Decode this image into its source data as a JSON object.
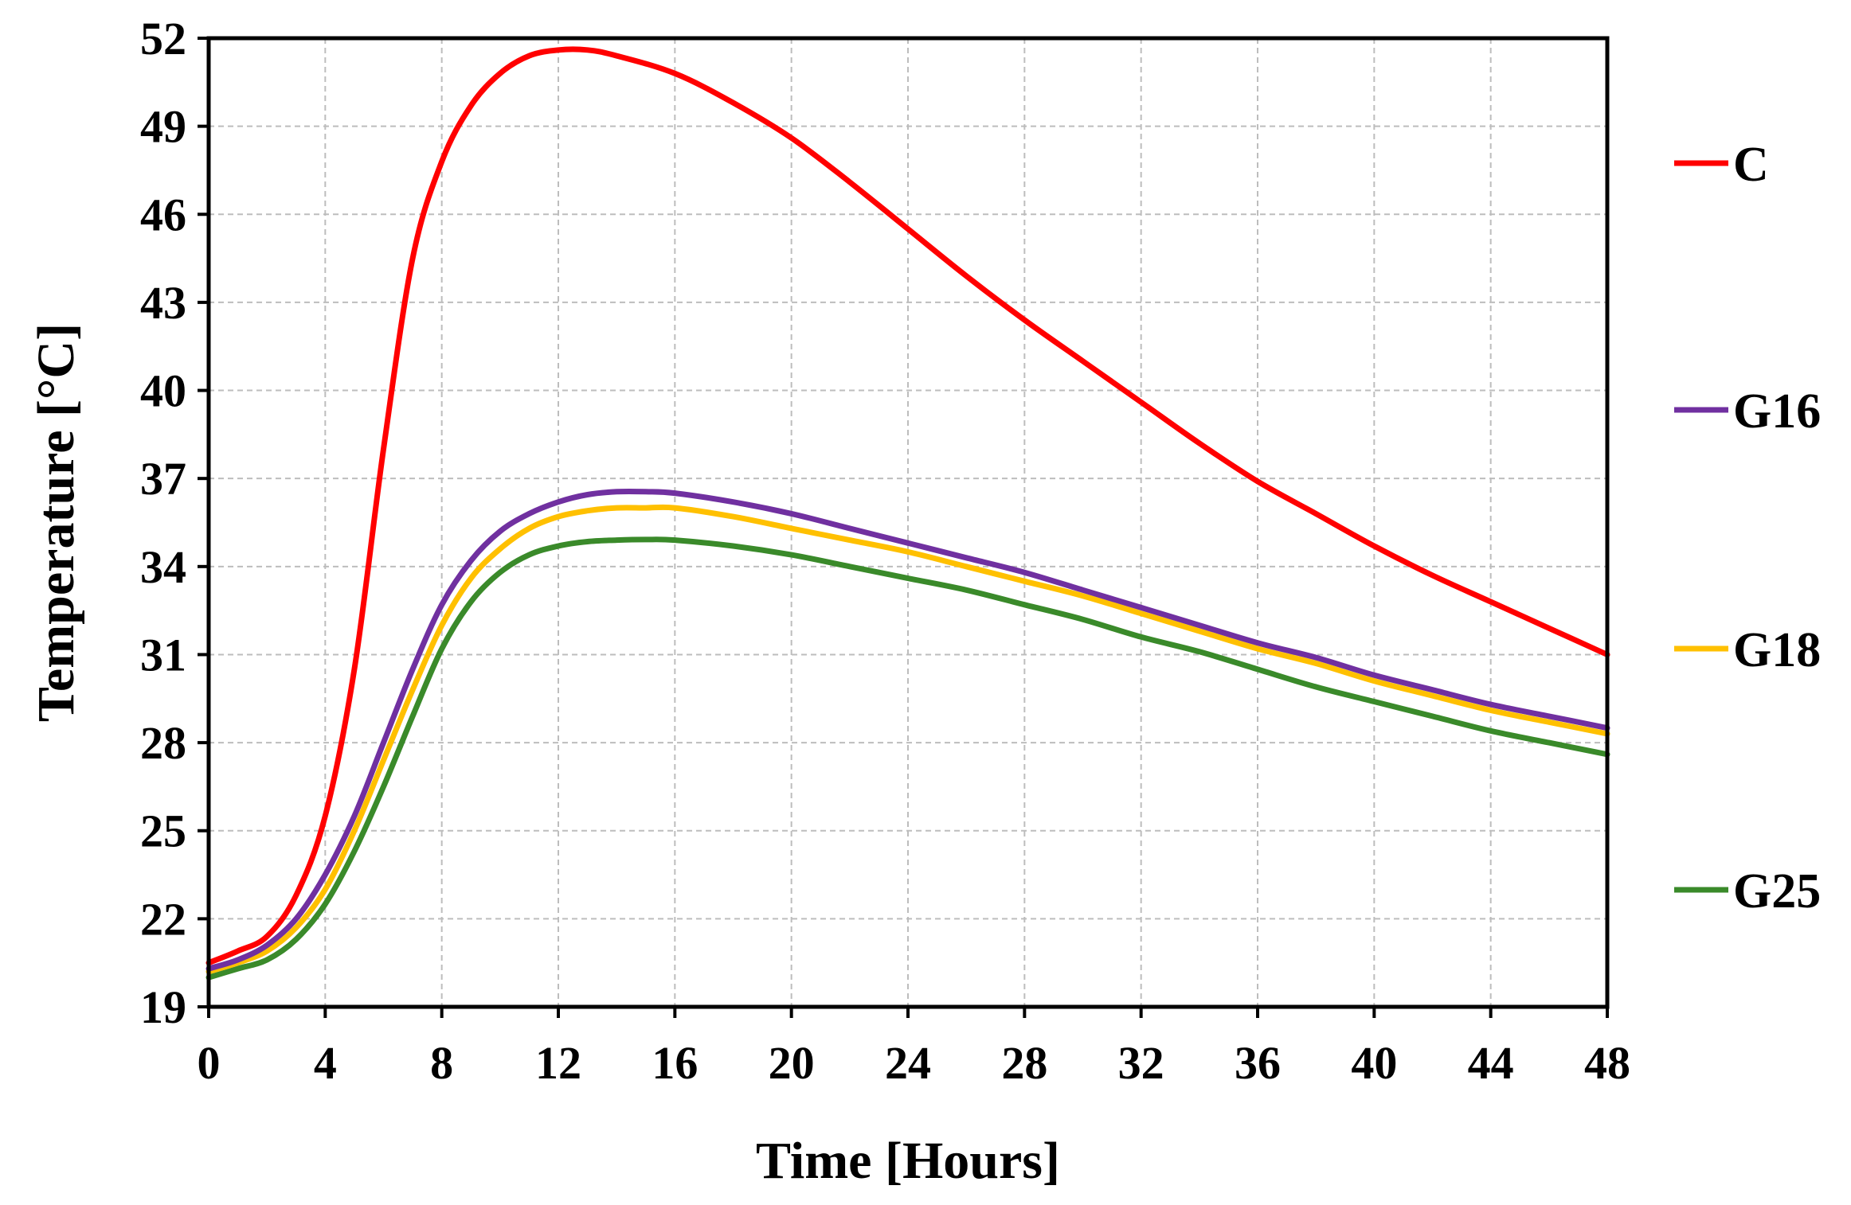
{
  "chart_data": {
    "type": "line",
    "title": "",
    "xlabel": "Time [Hours]",
    "ylabel": "Temperature [°C]",
    "xlim": [
      0,
      48
    ],
    "ylim": [
      19,
      52
    ],
    "xticks": [
      0,
      4,
      8,
      12,
      16,
      20,
      24,
      28,
      32,
      36,
      40,
      44,
      48
    ],
    "yticks": [
      19,
      22,
      25,
      28,
      31,
      34,
      37,
      40,
      43,
      46,
      49,
      52
    ],
    "x_tick_labels": [
      "0",
      "4",
      "8",
      "12",
      "16",
      "20",
      "24",
      "28",
      "32",
      "36",
      "40",
      "44",
      "48"
    ],
    "y_tick_labels": [
      "19",
      "22",
      "25",
      "28",
      "31",
      "34",
      "37",
      "40",
      "43",
      "46",
      "49",
      "52"
    ],
    "grid": true,
    "legend_position": "right",
    "series": [
      {
        "name": "C",
        "color": "#ff0000",
        "x": [
          0,
          1,
          2,
          3,
          4,
          5,
          6,
          7,
          8,
          9,
          10,
          11,
          12,
          13,
          14,
          16,
          18,
          20,
          22,
          24,
          26,
          28,
          30,
          32,
          34,
          36,
          38,
          40,
          42,
          44,
          46,
          48
        ],
        "y": [
          20.5,
          20.9,
          21.4,
          22.8,
          25.5,
          30.5,
          38.0,
          44.5,
          47.8,
          49.7,
          50.8,
          51.4,
          51.6,
          51.6,
          51.4,
          50.8,
          49.8,
          48.6,
          47.1,
          45.5,
          43.9,
          42.4,
          41.0,
          39.6,
          38.2,
          36.9,
          35.8,
          34.7,
          33.7,
          32.8,
          31.9,
          31.0
        ]
      },
      {
        "name": "G16",
        "color": "#7030a0",
        "x": [
          0,
          1,
          2,
          3,
          4,
          5,
          6,
          7,
          8,
          9,
          10,
          11,
          12,
          13,
          14,
          15,
          16,
          18,
          20,
          22,
          24,
          26,
          28,
          30,
          32,
          34,
          36,
          38,
          40,
          42,
          44,
          46,
          48
        ],
        "y": [
          20.3,
          20.6,
          21.1,
          22.0,
          23.5,
          25.5,
          28.0,
          30.5,
          32.7,
          34.2,
          35.2,
          35.8,
          36.2,
          36.45,
          36.55,
          36.55,
          36.5,
          36.2,
          35.8,
          35.3,
          34.8,
          34.3,
          33.8,
          33.2,
          32.6,
          32.0,
          31.4,
          30.9,
          30.3,
          29.8,
          29.3,
          28.9,
          28.5
        ]
      },
      {
        "name": "G18",
        "color": "#ffc000",
        "x": [
          0,
          1,
          2,
          3,
          4,
          5,
          6,
          7,
          8,
          9,
          10,
          11,
          12,
          13,
          14,
          15,
          16,
          18,
          20,
          22,
          24,
          26,
          28,
          30,
          32,
          34,
          36,
          38,
          40,
          42,
          44,
          46,
          48
        ],
        "y": [
          20.2,
          20.5,
          20.9,
          21.7,
          23.0,
          25.0,
          27.4,
          29.8,
          32.0,
          33.6,
          34.6,
          35.3,
          35.7,
          35.9,
          36.0,
          36.0,
          36.0,
          35.7,
          35.3,
          34.9,
          34.5,
          34.0,
          33.5,
          33.0,
          32.4,
          31.8,
          31.2,
          30.7,
          30.1,
          29.6,
          29.1,
          28.7,
          28.3
        ]
      },
      {
        "name": "G25",
        "color": "#3a8a2a",
        "x": [
          0,
          1,
          2,
          3,
          4,
          5,
          6,
          7,
          8,
          9,
          10,
          11,
          12,
          13,
          14,
          15,
          16,
          18,
          20,
          22,
          24,
          26,
          28,
          30,
          32,
          34,
          36,
          38,
          40,
          42,
          44,
          46,
          48
        ],
        "y": [
          20.0,
          20.3,
          20.6,
          21.3,
          22.5,
          24.3,
          26.5,
          28.9,
          31.2,
          32.8,
          33.8,
          34.4,
          34.7,
          34.85,
          34.9,
          34.92,
          34.9,
          34.7,
          34.4,
          34.0,
          33.6,
          33.2,
          32.7,
          32.2,
          31.6,
          31.1,
          30.5,
          29.9,
          29.4,
          28.9,
          28.4,
          28.0,
          27.6
        ]
      }
    ]
  }
}
